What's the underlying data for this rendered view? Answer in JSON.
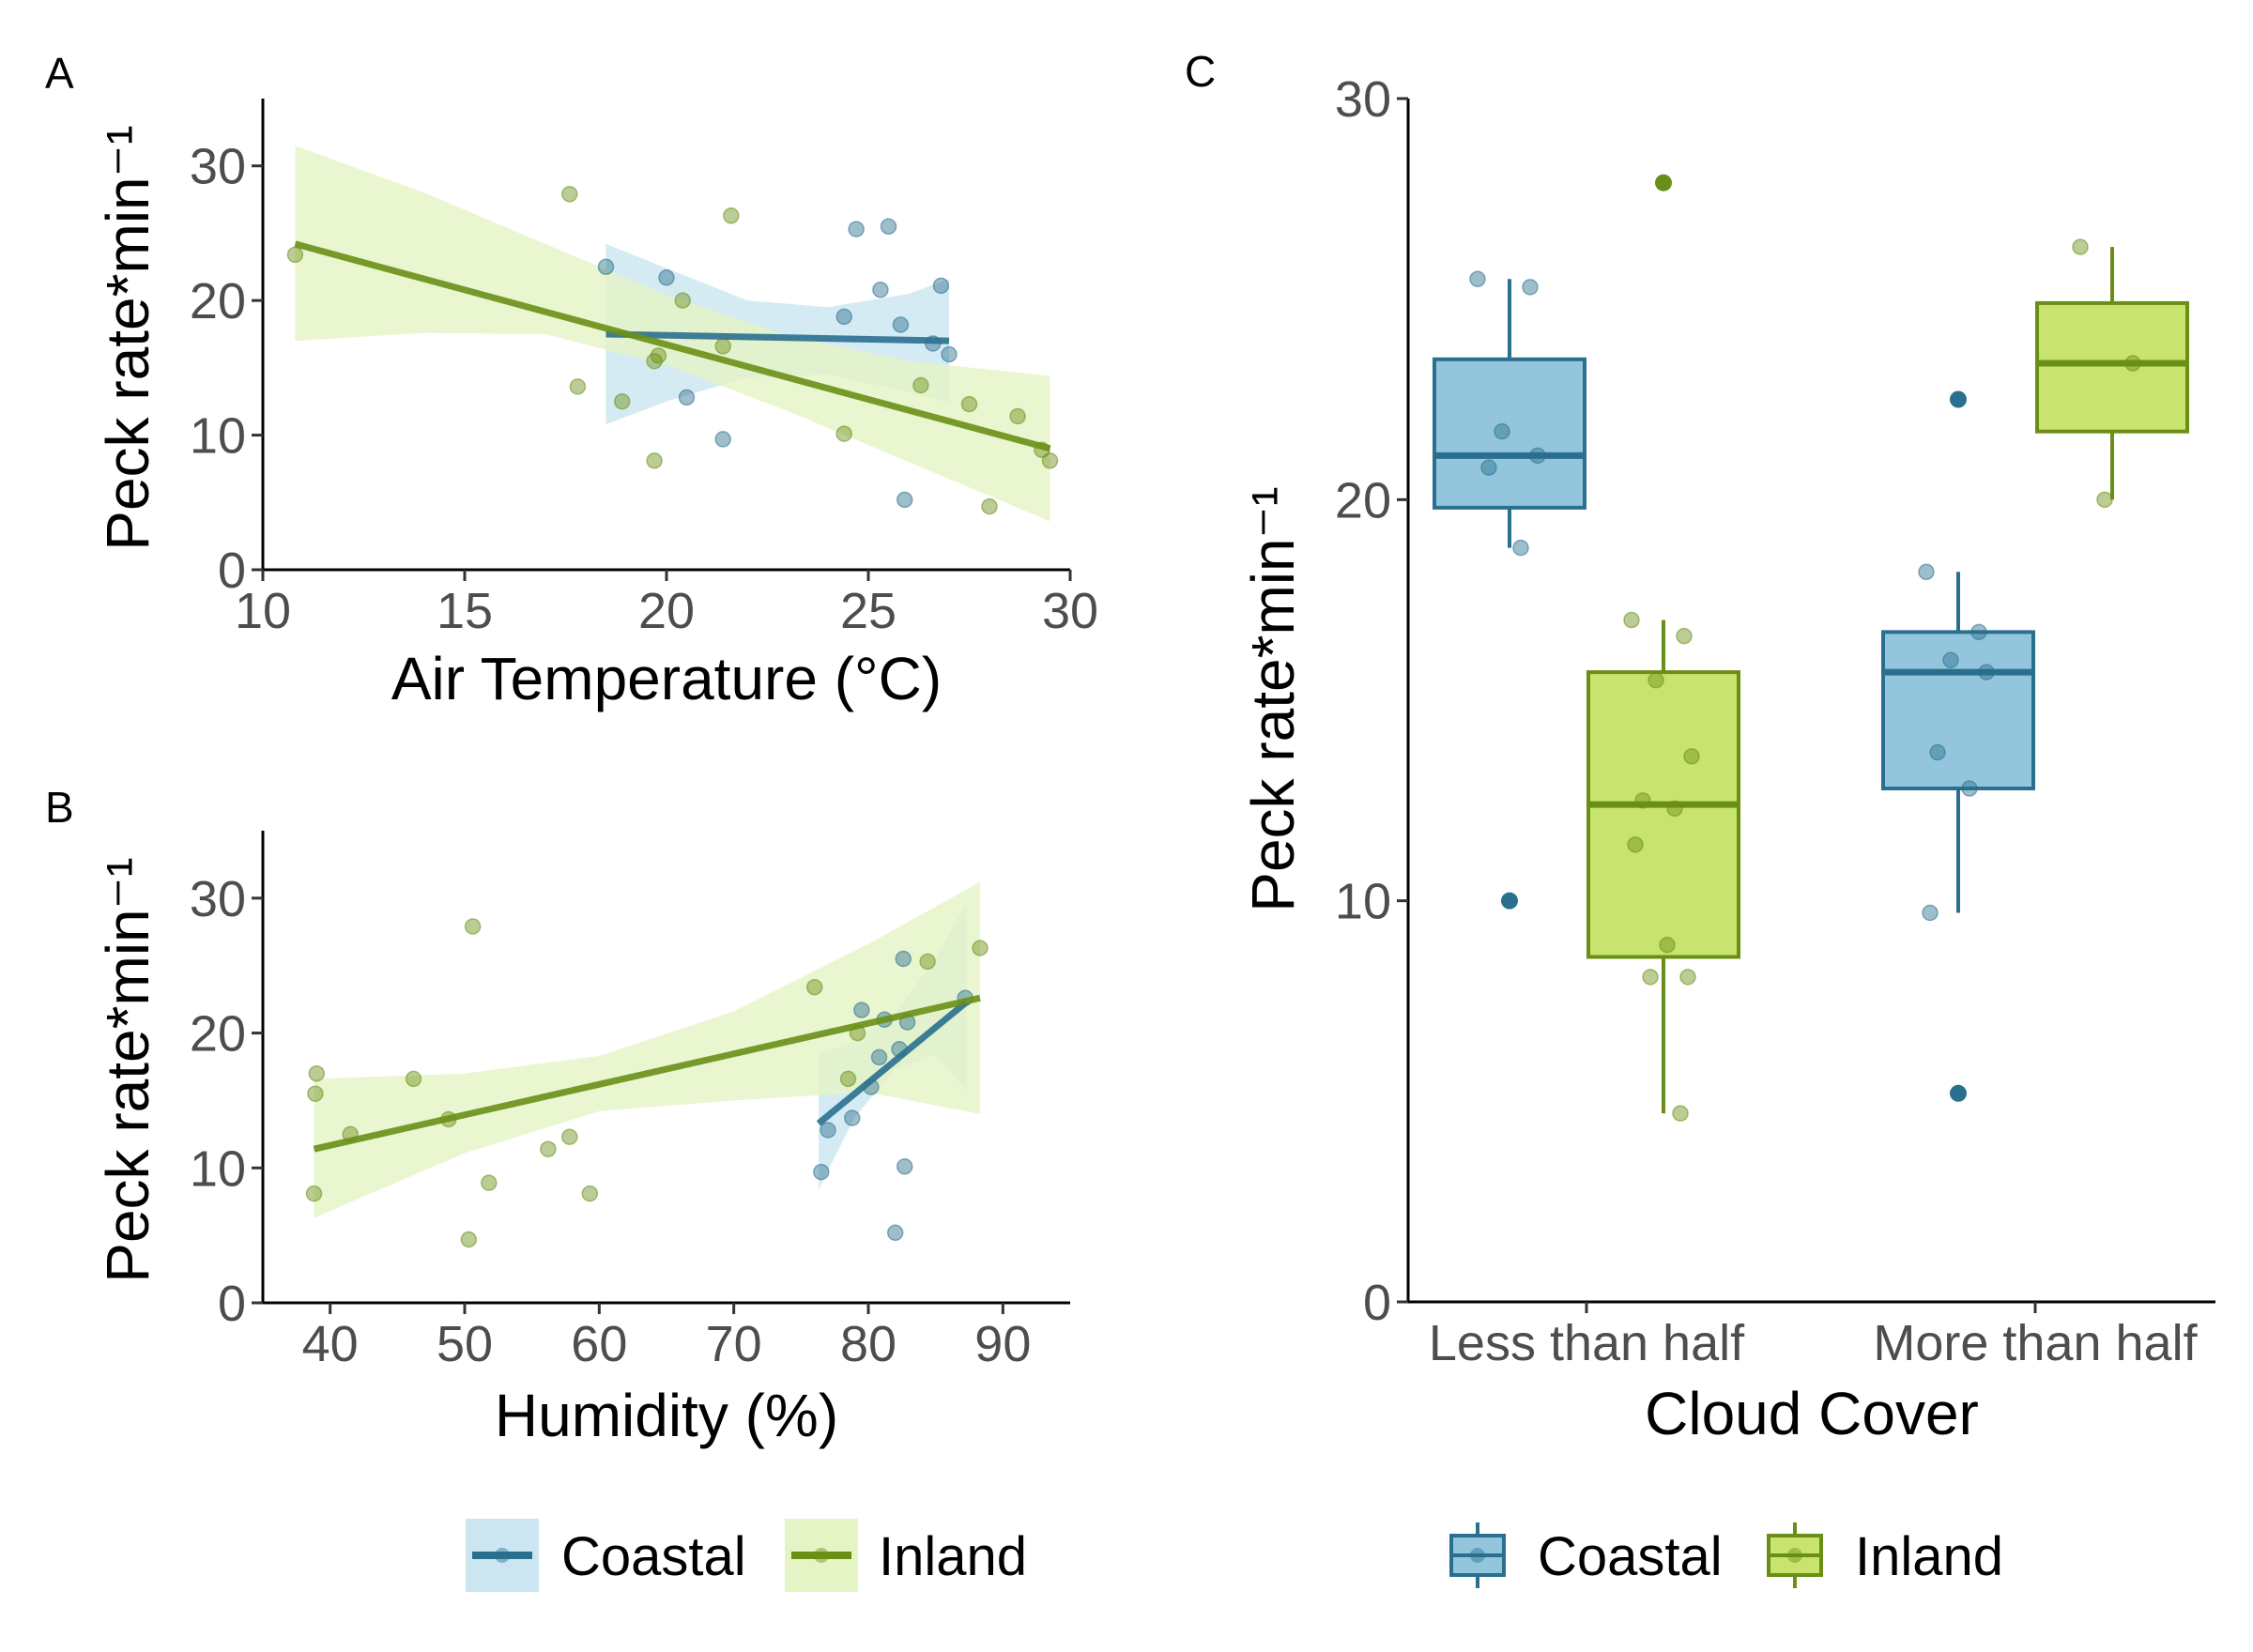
{
  "colors": {
    "coastal": "#2b6f8f",
    "coastal_fill": "#93c6dd",
    "coastal_band": "#cbe6f0",
    "inland": "#6a8f16",
    "inland_fill": "#c8e46e",
    "inland_band": "#e5f4c4"
  },
  "chart_data": [
    {
      "panel": "A",
      "type": "scatter",
      "xlabel": "Air Temperature (°C)",
      "ylabel": "Peck rate*min⁻¹",
      "xlim": [
        10,
        30
      ],
      "ylim": [
        0,
        35
      ],
      "xticks": [
        10,
        15,
        20,
        25,
        30
      ],
      "yticks": [
        0,
        10,
        20,
        30
      ],
      "series": [
        {
          "name": "Coastal",
          "points": [
            [
              18.5,
              22.5
            ],
            [
              20.0,
              21.7
            ],
            [
              20.5,
              12.8
            ],
            [
              21.4,
              9.7
            ],
            [
              24.4,
              18.8
            ],
            [
              24.7,
              25.3
            ],
            [
              25.3,
              20.8
            ],
            [
              25.5,
              25.5
            ],
            [
              25.8,
              18.2
            ],
            [
              25.9,
              5.2
            ],
            [
              26.6,
              16.8
            ],
            [
              26.8,
              21.1
            ],
            [
              27.0,
              16.0
            ]
          ],
          "fit": {
            "x": [
              18.5,
              27.0
            ],
            "y": [
              17.5,
              17.0
            ]
          },
          "band": {
            "x": [
              18.5,
              20,
              22,
              24,
              26,
              27.0
            ],
            "lower": [
              10.8,
              12.5,
              14.3,
              14.5,
              13.2,
              12.4
            ],
            "upper": [
              24.2,
              22.4,
              20.0,
              19.5,
              20.5,
              21.6
            ]
          }
        },
        {
          "name": "Inland",
          "points": [
            [
              10.8,
              23.4
            ],
            [
              17.6,
              27.9
            ],
            [
              17.8,
              13.6
            ],
            [
              18.9,
              12.5
            ],
            [
              19.7,
              15.5
            ],
            [
              19.7,
              8.1
            ],
            [
              19.8,
              15.9
            ],
            [
              20.4,
              20.0
            ],
            [
              21.4,
              16.6
            ],
            [
              21.6,
              26.3
            ],
            [
              24.4,
              10.1
            ],
            [
              26.3,
              13.7
            ],
            [
              27.5,
              12.3
            ],
            [
              28.0,
              4.7
            ],
            [
              28.7,
              11.4
            ],
            [
              29.3,
              8.9
            ],
            [
              29.5,
              8.1
            ]
          ],
          "fit": {
            "x": [
              10.8,
              29.5
            ],
            "y": [
              24.2,
              9.0
            ]
          },
          "band": {
            "x": [
              10.8,
              14,
              17,
              20,
              23,
              26,
              29.5
            ],
            "lower": [
              17.0,
              17.6,
              17.5,
              15.2,
              11.8,
              8.0,
              3.6
            ],
            "upper": [
              31.5,
              28.0,
              24.2,
              20.4,
              17.4,
              15.5,
              14.4
            ]
          }
        }
      ]
    },
    {
      "panel": "B",
      "type": "scatter",
      "xlabel": "Humidity (%)",
      "ylabel": "Peck rate*min⁻¹",
      "xlim": [
        35,
        95
      ],
      "ylim": [
        0,
        35
      ],
      "xticks": [
        40,
        50,
        60,
        70,
        80,
        90
      ],
      "yticks": [
        0,
        10,
        20,
        30
      ],
      "series": [
        {
          "name": "Coastal",
          "points": [
            [
              76.5,
              9.7
            ],
            [
              77.0,
              12.8
            ],
            [
              78.8,
              13.7
            ],
            [
              79.5,
              21.7
            ],
            [
              80.2,
              16.0
            ],
            [
              80.8,
              18.2
            ],
            [
              81.2,
              21.0
            ],
            [
              82.0,
              5.2
            ],
            [
              82.3,
              18.8
            ],
            [
              82.6,
              25.5
            ],
            [
              82.7,
              10.1
            ],
            [
              82.9,
              20.8
            ],
            [
              87.2,
              22.6
            ]
          ],
          "fit": {
            "x": [
              76.3,
              87.3
            ],
            "y": [
              13.3,
              22.3
            ]
          },
          "band": {
            "x": [
              76.3,
              79,
              82,
              85,
              87.3
            ],
            "lower": [
              8.4,
              13.8,
              17.3,
              18.4,
              15.7
            ],
            "upper": [
              18.4,
              19.4,
              21.5,
              25.5,
              29.7
            ]
          }
        },
        {
          "name": "Inland",
          "points": [
            [
              38.8,
              8.1
            ],
            [
              38.9,
              15.5
            ],
            [
              39.0,
              17.0
            ],
            [
              41.5,
              12.5
            ],
            [
              46.2,
              16.6
            ],
            [
              48.8,
              13.6
            ],
            [
              50.3,
              4.7
            ],
            [
              50.6,
              27.9
            ],
            [
              51.8,
              8.9
            ],
            [
              56.2,
              11.4
            ],
            [
              57.8,
              12.3
            ],
            [
              59.3,
              8.1
            ],
            [
              76.0,
              23.4
            ],
            [
              78.5,
              16.6
            ],
            [
              79.2,
              20.0
            ],
            [
              84.4,
              25.3
            ],
            [
              88.3,
              26.3
            ]
          ],
          "fit": {
            "x": [
              38.8,
              88.3
            ],
            "y": [
              11.4,
              22.6
            ]
          },
          "band": {
            "x": [
              38.8,
              50,
              60,
              70,
              80,
              88.3
            ],
            "lower": [
              6.3,
              11.1,
              14.2,
              15.0,
              15.6,
              14.0
            ],
            "upper": [
              16.6,
              17.0,
              18.3,
              21.6,
              26.6,
              31.2
            ]
          }
        }
      ]
    },
    {
      "panel": "C",
      "type": "box",
      "xlabel": "Cloud Cover",
      "ylabel": "Peck rate*min⁻¹",
      "ylim": [
        0,
        30
      ],
      "yticks": [
        0,
        10,
        20,
        30
      ],
      "categories": [
        "Less than half",
        "More than half"
      ],
      "series": [
        {
          "name": "Coastal",
          "boxes": [
            {
              "category": "Less than half",
              "q1": 19.8,
              "median": 21.1,
              "q3": 23.5,
              "whisker_low": 18.8,
              "whisker_high": 25.5,
              "outliers": [
                10.0
              ],
              "points": [
                25.5,
                25.3,
                21.7,
                21.1,
                20.8,
                18.8
              ]
            },
            {
              "category": "More than half",
              "q1": 12.8,
              "median": 15.7,
              "q3": 16.7,
              "whisker_low": 9.7,
              "whisker_high": 18.2,
              "outliers": [
                22.5,
                5.2
              ],
              "points": [
                18.2,
                16.7,
                16.0,
                15.7,
                13.7,
                12.8,
                9.7
              ]
            }
          ]
        },
        {
          "name": "Inland",
          "boxes": [
            {
              "category": "Less than half",
              "q1": 8.6,
              "median": 12.4,
              "q3": 15.7,
              "whisker_low": 4.7,
              "whisker_high": 17.0,
              "outliers": [
                27.9
              ],
              "points": [
                17.0,
                16.6,
                15.5,
                13.6,
                12.5,
                12.3,
                11.4,
                8.9,
                8.1,
                8.1,
                4.7
              ]
            },
            {
              "category": "More than half",
              "q1": 21.7,
              "median": 23.4,
              "q3": 24.9,
              "whisker_low": 20.0,
              "whisker_high": 26.3,
              "outliers": [],
              "points": [
                26.3,
                23.4,
                20.0
              ]
            }
          ]
        }
      ]
    }
  ],
  "legend_left": {
    "items": [
      "Coastal",
      "Inland"
    ]
  },
  "legend_right": {
    "items": [
      "Coastal",
      "Inland"
    ]
  }
}
